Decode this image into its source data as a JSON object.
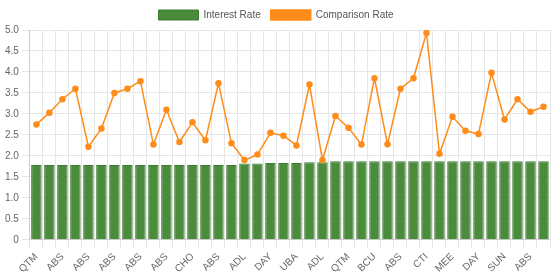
{
  "chart_data": {
    "type": "bar",
    "categories": [
      "QTM",
      null,
      "ABS",
      null,
      "ABS",
      null,
      "ABS",
      null,
      "ABS",
      null,
      "ABS",
      null,
      "CHO",
      null,
      "ABS",
      null,
      "ADL",
      null,
      "DAY",
      null,
      "UBA",
      null,
      "ADL",
      null,
      "QTM",
      null,
      "BCU",
      null,
      "ABS",
      null,
      "CTI",
      null,
      "MEE",
      null,
      "DAY",
      null,
      "SUN",
      null,
      "ABS",
      null
    ],
    "series": [
      {
        "name": "Interest Rate",
        "color": "#4a8c3c",
        "values": [
          1.78,
          1.78,
          1.78,
          1.78,
          1.78,
          1.78,
          1.78,
          1.78,
          1.78,
          1.78,
          1.78,
          1.78,
          1.78,
          1.78,
          1.78,
          1.78,
          1.82,
          1.82,
          1.83,
          1.83,
          1.83,
          1.85,
          1.85,
          1.87,
          1.87,
          1.87,
          1.87,
          1.87,
          1.87,
          1.87,
          1.87,
          1.87,
          1.87,
          1.87,
          1.87,
          1.87,
          1.87,
          1.87,
          1.87,
          1.87
        ]
      },
      {
        "name": "Comparison Rate",
        "color": "#ff8c1a",
        "type": "line",
        "marker": "circle",
        "values": [
          2.75,
          3.03,
          3.35,
          3.6,
          2.22,
          2.65,
          3.5,
          3.6,
          3.78,
          2.27,
          3.1,
          2.33,
          2.8,
          2.37,
          3.73,
          2.3,
          1.9,
          2.03,
          2.55,
          2.48,
          2.25,
          3.7,
          1.9,
          2.95,
          2.67,
          2.27,
          3.85,
          2.28,
          3.6,
          3.85,
          4.93,
          2.05,
          2.93,
          2.6,
          2.52,
          3.98,
          2.87,
          3.35,
          3.05,
          3.17
        ]
      }
    ],
    "ylim": [
      0,
      5
    ],
    "yticks": [
      0,
      0.5,
      {
        "value": 1,
        "label": "1.0"
      },
      1.5,
      {
        "value": 2,
        "label": "2.0"
      },
      2.5,
      {
        "value": 3,
        "label": "3.0"
      },
      3.5,
      {
        "value": 4,
        "label": "4.0"
      },
      4.5,
      {
        "value": 5,
        "label": "5.0"
      }
    ],
    "grid": true,
    "legend": "top"
  }
}
